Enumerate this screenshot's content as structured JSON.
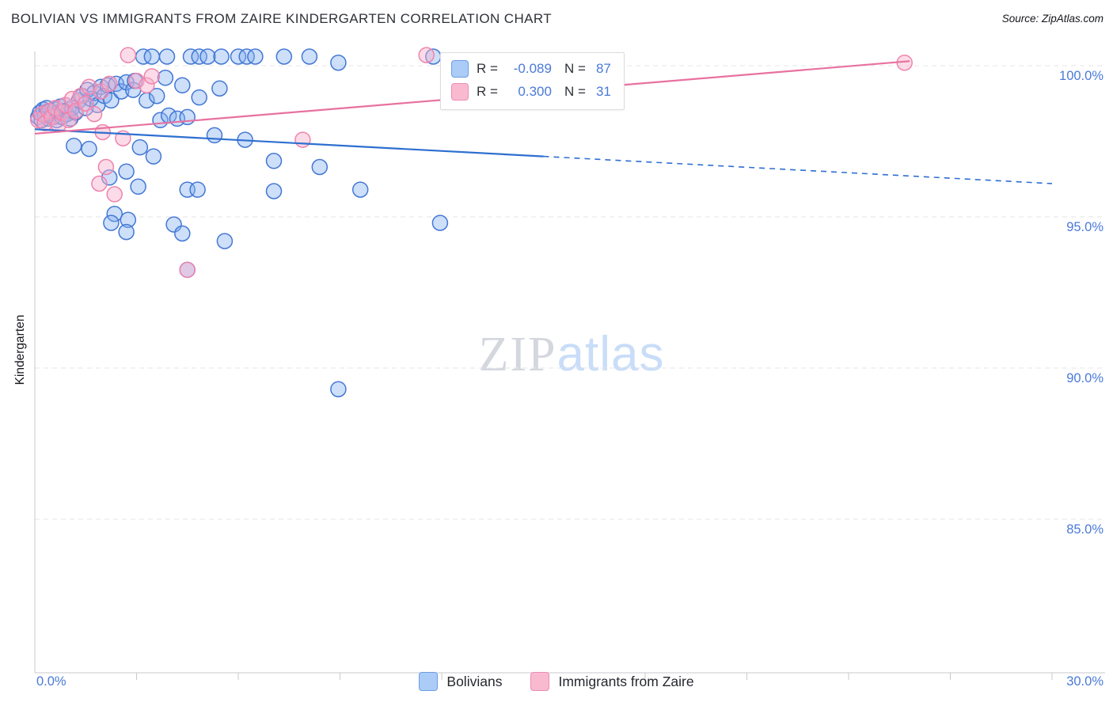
{
  "header": {
    "title": "BOLIVIAN VS IMMIGRANTS FROM ZAIRE KINDERGARTEN CORRELATION CHART",
    "source": "Source: ZipAtlas.com"
  },
  "watermark": {
    "part1": "ZIP",
    "part2": "atlas"
  },
  "correlation_box": {
    "series": [
      {
        "r_label": "R =",
        "r_value": "-0.089",
        "n_label": "N =",
        "n_value": "87"
      },
      {
        "r_label": "R =",
        "r_value": "0.300",
        "n_label": "N =",
        "n_value": "31"
      }
    ]
  },
  "legend": {
    "items": [
      {
        "label": "Bolivians"
      },
      {
        "label": "Immigrants from Zaire"
      }
    ]
  },
  "axes": {
    "y_label": "Kindergarten",
    "x_min_label": "0.0%",
    "x_max_label": "30.0%",
    "y_tick_labels": [
      "100.0%",
      "95.0%",
      "90.0%",
      "85.0%"
    ],
    "y_tick_values": [
      100,
      95,
      90,
      85
    ],
    "x_range": [
      0,
      30
    ],
    "x_tick_step": 3
  },
  "chart_data": {
    "type": "scatter",
    "title": "Bolivian vs Immigrants from Zaire Kindergarten Correlation",
    "xlabel": "",
    "ylabel": "Kindergarten",
    "xlim": [
      0,
      31.5
    ],
    "ylim": [
      79.9,
      100.5
    ],
    "grid": "horizontal-dashed",
    "series": [
      {
        "name": "Bolivians",
        "stroke": "#4377d4",
        "fill": "rgba(130,175,240,0.40)",
        "points": [
          [
            0.1,
            98.3
          ],
          [
            0.15,
            98.45
          ],
          [
            0.2,
            98.2
          ],
          [
            0.25,
            98.55
          ],
          [
            0.3,
            98.35
          ],
          [
            0.35,
            98.6
          ],
          [
            0.4,
            98.25
          ],
          [
            0.45,
            98.5
          ],
          [
            0.5,
            98.4
          ],
          [
            0.55,
            98.3
          ],
          [
            0.6,
            98.55
          ],
          [
            0.65,
            98.2
          ],
          [
            0.7,
            98.45
          ],
          [
            0.75,
            98.65
          ],
          [
            0.8,
            98.3
          ],
          [
            0.85,
            98.5
          ],
          [
            0.9,
            98.7
          ],
          [
            0.95,
            98.4
          ],
          [
            1.0,
            98.55
          ],
          [
            1.05,
            98.25
          ],
          [
            1.1,
            98.6
          ],
          [
            1.2,
            98.45
          ],
          [
            1.3,
            98.85
          ],
          [
            1.4,
            99.0
          ],
          [
            1.5,
            98.6
          ],
          [
            1.55,
            99.2
          ],
          [
            1.65,
            98.9
          ],
          [
            1.75,
            99.1
          ],
          [
            1.85,
            98.7
          ],
          [
            1.95,
            99.3
          ],
          [
            2.05,
            99.0
          ],
          [
            2.15,
            99.35
          ],
          [
            2.25,
            98.85
          ],
          [
            2.4,
            99.4
          ],
          [
            2.55,
            99.15
          ],
          [
            2.7,
            99.45
          ],
          [
            2.9,
            99.2
          ],
          [
            2.95,
            99.5
          ],
          [
            3.3,
            98.85
          ],
          [
            3.6,
            99.0
          ],
          [
            3.85,
            99.6
          ],
          [
            4.35,
            99.35
          ],
          [
            4.85,
            98.95
          ],
          [
            5.45,
            99.25
          ],
          [
            3.2,
            100.3
          ],
          [
            3.45,
            100.3
          ],
          [
            3.9,
            100.3
          ],
          [
            4.6,
            100.3
          ],
          [
            4.85,
            100.3
          ],
          [
            5.1,
            100.3
          ],
          [
            5.5,
            100.3
          ],
          [
            6.0,
            100.3
          ],
          [
            6.25,
            100.3
          ],
          [
            6.5,
            100.3
          ],
          [
            7.35,
            100.3
          ],
          [
            8.1,
            100.3
          ],
          [
            8.95,
            100.1
          ],
          [
            11.75,
            100.3
          ],
          [
            3.1,
            97.3
          ],
          [
            3.5,
            97.0
          ],
          [
            3.7,
            98.2
          ],
          [
            3.95,
            98.35
          ],
          [
            4.2,
            98.25
          ],
          [
            4.5,
            98.3
          ],
          [
            5.3,
            97.7
          ],
          [
            6.2,
            97.55
          ],
          [
            7.05,
            96.85
          ],
          [
            8.4,
            96.65
          ],
          [
            1.15,
            97.35
          ],
          [
            1.6,
            97.25
          ],
          [
            2.2,
            96.3
          ],
          [
            2.7,
            96.5
          ],
          [
            3.05,
            96.0
          ],
          [
            2.35,
            95.1
          ],
          [
            2.75,
            94.9
          ],
          [
            4.5,
            95.9
          ],
          [
            4.8,
            95.9
          ],
          [
            4.1,
            94.75
          ],
          [
            4.35,
            94.45
          ],
          [
            5.6,
            94.2
          ],
          [
            2.25,
            94.8
          ],
          [
            7.05,
            95.85
          ],
          [
            9.6,
            95.9
          ],
          [
            2.7,
            94.5
          ],
          [
            4.5,
            93.25
          ],
          [
            8.95,
            89.3
          ],
          [
            11.95,
            94.8
          ]
        ]
      },
      {
        "name": "Immigrants from Zaire",
        "stroke": "#ee84ad",
        "fill": "rgba(248,175,205,0.45)",
        "points": [
          [
            0.1,
            98.2
          ],
          [
            0.2,
            98.4
          ],
          [
            0.3,
            98.1
          ],
          [
            0.4,
            98.5
          ],
          [
            0.5,
            98.3
          ],
          [
            0.6,
            98.6
          ],
          [
            0.7,
            98.05
          ],
          [
            0.8,
            98.45
          ],
          [
            0.9,
            98.7
          ],
          [
            1.0,
            98.2
          ],
          [
            1.1,
            98.9
          ],
          [
            1.2,
            98.5
          ],
          [
            1.35,
            99.0
          ],
          [
            1.5,
            98.75
          ],
          [
            1.6,
            99.3
          ],
          [
            1.75,
            98.4
          ],
          [
            1.9,
            96.1
          ],
          [
            1.95,
            99.15
          ],
          [
            2.0,
            97.8
          ],
          [
            2.1,
            96.65
          ],
          [
            2.2,
            99.4
          ],
          [
            2.35,
            95.75
          ],
          [
            2.6,
            97.6
          ],
          [
            2.75,
            100.35
          ],
          [
            3.0,
            99.5
          ],
          [
            3.3,
            99.35
          ],
          [
            3.45,
            99.65
          ],
          [
            4.5,
            93.25
          ],
          [
            7.9,
            97.55
          ],
          [
            11.55,
            100.35
          ],
          [
            25.65,
            100.1
          ]
        ]
      }
    ],
    "trend_lines": [
      {
        "series": "Bolivians",
        "color": "#2e6fd0",
        "start": [
          0,
          97.9
        ],
        "end": [
          30,
          96.1
        ],
        "solid_until_x": 15
      },
      {
        "series": "Immigrants from Zaire",
        "color": "#e8719f",
        "start": [
          0,
          97.75
        ],
        "end": [
          25.8,
          100.15
        ]
      }
    ],
    "stats": [
      {
        "series": "Bolivians",
        "R": -0.089,
        "N": 87
      },
      {
        "series": "Immigrants from Zaire",
        "R": 0.3,
        "N": 31
      }
    ]
  }
}
